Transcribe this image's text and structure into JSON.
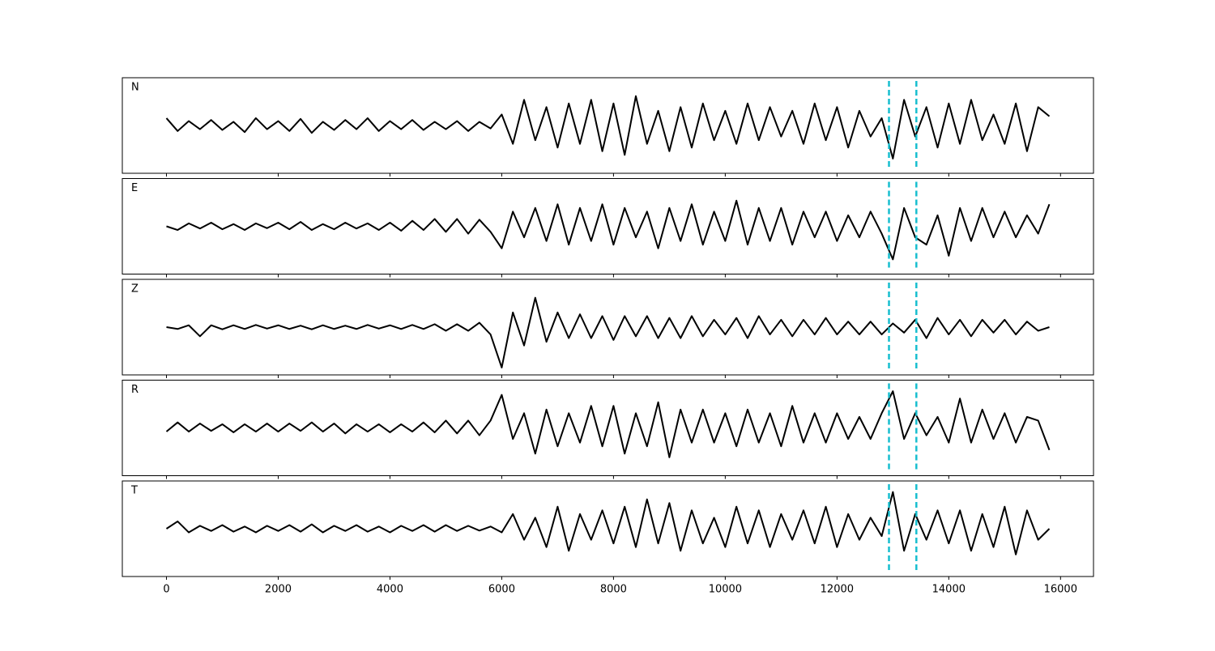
{
  "chart_data": {
    "type": "line",
    "x": [
      0,
      200,
      400,
      600,
      800,
      1000,
      1200,
      1400,
      1600,
      1800,
      2000,
      2200,
      2400,
      2600,
      2800,
      3000,
      3200,
      3400,
      3600,
      3800,
      4000,
      4200,
      4400,
      4600,
      4800,
      5000,
      5200,
      5400,
      5600,
      5800,
      6000,
      6200,
      6400,
      6600,
      6800,
      7000,
      7200,
      7400,
      7600,
      7800,
      8000,
      8200,
      8400,
      8600,
      8800,
      9000,
      9200,
      9400,
      9600,
      9800,
      10000,
      10200,
      10400,
      10600,
      10800,
      11000,
      11200,
      11400,
      11600,
      11800,
      12000,
      12200,
      12400,
      12600,
      12800,
      13000,
      13200,
      13400,
      13600,
      13800,
      14000,
      14200,
      14400,
      14600,
      14800,
      15000,
      15200,
      15400,
      15600,
      15800
    ],
    "series": [
      {
        "name": "N",
        "color": "#000000",
        "values": [
          0.2,
          -0.15,
          0.12,
          -0.1,
          0.15,
          -0.12,
          0.1,
          -0.18,
          0.2,
          -0.1,
          0.12,
          -0.15,
          0.18,
          -0.2,
          0.1,
          -0.12,
          0.15,
          -0.1,
          0.2,
          -0.15,
          0.12,
          -0.1,
          0.15,
          -0.12,
          0.1,
          -0.1,
          0.12,
          -0.15,
          0.1,
          -0.08,
          0.3,
          -0.5,
          0.7,
          -0.4,
          0.5,
          -0.6,
          0.6,
          -0.5,
          0.7,
          -0.7,
          0.6,
          -0.8,
          0.8,
          -0.5,
          0.4,
          -0.7,
          0.5,
          -0.6,
          0.6,
          -0.4,
          0.4,
          -0.5,
          0.6,
          -0.4,
          0.5,
          -0.3,
          0.4,
          -0.5,
          0.6,
          -0.4,
          0.5,
          -0.6,
          0.4,
          -0.3,
          0.2,
          -0.9,
          0.7,
          -0.3,
          0.5,
          -0.6,
          0.6,
          -0.5,
          0.7,
          -0.4,
          0.3,
          -0.5,
          0.6,
          -0.7,
          0.5,
          0.25
        ]
      },
      {
        "name": "E",
        "color": "#000000",
        "values": [
          0.0,
          -0.1,
          0.08,
          -0.06,
          0.1,
          -0.08,
          0.06,
          -0.1,
          0.08,
          -0.05,
          0.1,
          -0.08,
          0.12,
          -0.1,
          0.06,
          -0.08,
          0.1,
          -0.06,
          0.08,
          -0.1,
          0.1,
          -0.12,
          0.15,
          -0.1,
          0.2,
          -0.15,
          0.2,
          -0.2,
          0.18,
          -0.15,
          -0.6,
          0.4,
          -0.3,
          0.5,
          -0.4,
          0.6,
          -0.5,
          0.5,
          -0.4,
          0.6,
          -0.5,
          0.5,
          -0.3,
          0.4,
          -0.6,
          0.5,
          -0.4,
          0.6,
          -0.5,
          0.4,
          -0.4,
          0.7,
          -0.5,
          0.5,
          -0.4,
          0.5,
          -0.5,
          0.4,
          -0.3,
          0.4,
          -0.4,
          0.3,
          -0.3,
          0.4,
          -0.2,
          -0.9,
          0.5,
          -0.3,
          -0.5,
          0.3,
          -0.8,
          0.5,
          -0.4,
          0.5,
          -0.3,
          0.4,
          -0.3,
          0.3,
          -0.2,
          0.6
        ]
      },
      {
        "name": "Z",
        "color": "#000000",
        "values": [
          0.0,
          -0.05,
          0.05,
          -0.25,
          0.05,
          -0.06,
          0.05,
          -0.05,
          0.06,
          -0.04,
          0.05,
          -0.05,
          0.04,
          -0.06,
          0.05,
          -0.05,
          0.04,
          -0.05,
          0.06,
          -0.04,
          0.05,
          -0.05,
          0.06,
          -0.05,
          0.08,
          -0.1,
          0.08,
          -0.1,
          0.12,
          -0.2,
          -1.1,
          0.4,
          -0.5,
          0.8,
          -0.4,
          0.4,
          -0.3,
          0.35,
          -0.3,
          0.3,
          -0.35,
          0.3,
          -0.25,
          0.3,
          -0.3,
          0.25,
          -0.3,
          0.3,
          -0.25,
          0.2,
          -0.2,
          0.25,
          -0.3,
          0.3,
          -0.2,
          0.2,
          -0.25,
          0.2,
          -0.2,
          0.25,
          -0.2,
          0.15,
          -0.2,
          0.15,
          -0.2,
          0.1,
          -0.15,
          0.2,
          -0.3,
          0.25,
          -0.2,
          0.2,
          -0.25,
          0.2,
          -0.15,
          0.2,
          -0.2,
          0.15,
          -0.1,
          0.0
        ]
      },
      {
        "name": "R",
        "color": "#000000",
        "values": [
          -0.1,
          0.15,
          -0.1,
          0.12,
          -0.08,
          0.1,
          -0.12,
          0.1,
          -0.1,
          0.12,
          -0.1,
          0.12,
          -0.08,
          0.15,
          -0.1,
          0.12,
          -0.15,
          0.1,
          -0.1,
          0.1,
          -0.12,
          0.1,
          -0.1,
          0.15,
          -0.12,
          0.2,
          -0.15,
          0.2,
          -0.2,
          0.2,
          0.9,
          -0.3,
          0.4,
          -0.7,
          0.5,
          -0.5,
          0.4,
          -0.4,
          0.6,
          -0.5,
          0.6,
          -0.7,
          0.4,
          -0.5,
          0.7,
          -0.8,
          0.5,
          -0.4,
          0.5,
          -0.4,
          0.4,
          -0.5,
          0.5,
          -0.4,
          0.4,
          -0.5,
          0.6,
          -0.4,
          0.4,
          -0.4,
          0.4,
          -0.3,
          0.3,
          -0.3,
          0.4,
          1.0,
          -0.3,
          0.4,
          -0.2,
          0.3,
          -0.4,
          0.8,
          -0.4,
          0.5,
          -0.3,
          0.4,
          -0.4,
          0.3,
          0.2,
          -0.6
        ]
      },
      {
        "name": "T",
        "color": "#000000",
        "values": [
          0.0,
          0.2,
          -0.1,
          0.08,
          -0.06,
          0.1,
          -0.08,
          0.06,
          -0.1,
          0.08,
          -0.06,
          0.1,
          -0.08,
          0.12,
          -0.1,
          0.08,
          -0.06,
          0.1,
          -0.08,
          0.06,
          -0.1,
          0.08,
          -0.06,
          0.1,
          -0.08,
          0.1,
          -0.06,
          0.08,
          -0.05,
          0.06,
          -0.1,
          0.4,
          -0.3,
          0.3,
          -0.5,
          0.6,
          -0.6,
          0.4,
          -0.3,
          0.5,
          -0.4,
          0.6,
          -0.5,
          0.8,
          -0.4,
          0.7,
          -0.6,
          0.5,
          -0.4,
          0.3,
          -0.5,
          0.6,
          -0.4,
          0.5,
          -0.5,
          0.4,
          -0.3,
          0.5,
          -0.4,
          0.6,
          -0.5,
          0.4,
          -0.3,
          0.3,
          -0.2,
          1.0,
          -0.6,
          0.4,
          -0.3,
          0.5,
          -0.4,
          0.5,
          -0.6,
          0.4,
          -0.5,
          0.6,
          -0.7,
          0.5,
          -0.3,
          0.0
        ]
      }
    ],
    "xlim": [
      -790,
      16590
    ],
    "xticks": [
      0,
      2000,
      4000,
      6000,
      8000,
      10000,
      12000,
      14000,
      16000
    ],
    "ylim": [
      -1.3,
      1.3
    ],
    "vlines": [
      12930,
      13420
    ],
    "vline_color": "#17becf",
    "grid": false
  }
}
